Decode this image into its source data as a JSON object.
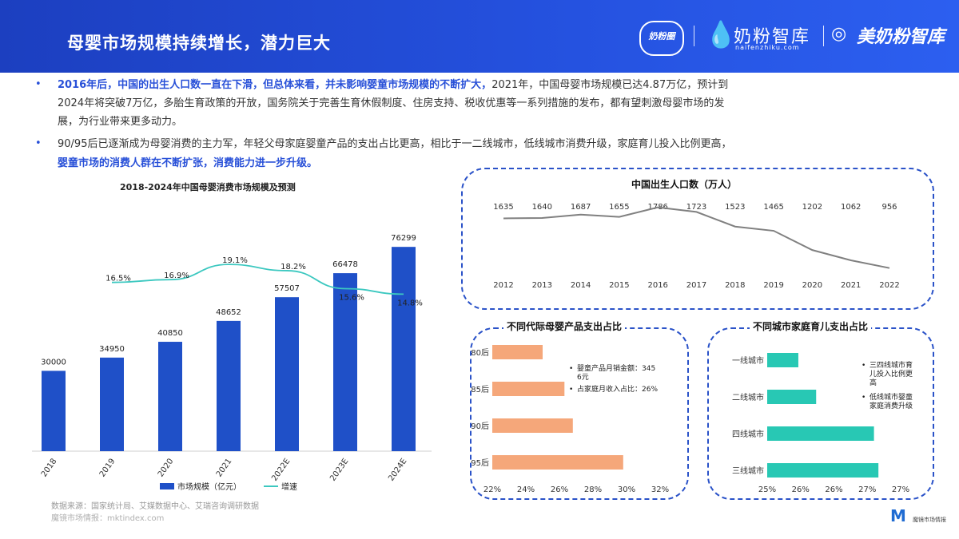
{
  "header": {
    "title": "母婴市场规模持续增长，潜力巨大",
    "logo1": "奶粉圈",
    "logo2_text": "奶粉智库",
    "logo2_sub": "naifenzhiku.com",
    "logo3_text": "美奶粉智库"
  },
  "bullets": {
    "b1_hl": "2016年后，中国的出生人口数一直在下滑，但总体来看，并未影响婴童市场规模的不断扩大，",
    "b1_rest1": "2021年，中国母婴市场规模已达4.87万亿，预计到",
    "b1_line2": "2024年将突破7万亿，多胎生育政策的开放，国务院关于完善生育休假制度、住房支持、税收优惠等一系列措施的发布，都有望刺激母婴市场的发",
    "b1_line3": "展，为行业带来更多动力。",
    "b2_line1": "90/95后已逐渐成为母婴消费的主力军，年轻父母家庭婴童产品的支出占比更高，相比于一二线城市，低线城市消费升级，家庭育儿投入比例更高，",
    "b2_hl": "婴童市场的消费人群在不断扩张，消费能力进一步升级。",
    "dot": "•"
  },
  "source": {
    "line1": "数据来源：国家统计局、艾媒数据中心、艾瑞咨询调研数据",
    "line2": "魔镜市场情报：mktindex.com",
    "corner": "魔镜市场情报"
  },
  "chart_data": [
    {
      "type": "bar",
      "title": "2018-2024年中国母婴消费市场规模及预测",
      "categories": [
        "2018",
        "2019",
        "2020",
        "2021",
        "2022E",
        "2023E",
        "2024E"
      ],
      "series": [
        {
          "name": "市场规模（亿元）",
          "type": "bar",
          "values": [
            30000,
            34950,
            40850,
            48652,
            57507,
            66478,
            76299
          ],
          "color": "#1f50c8"
        },
        {
          "name": "增速",
          "type": "line",
          "values": [
            null,
            16.5,
            16.9,
            19.1,
            18.2,
            15.6,
            14.8
          ],
          "labels": [
            "",
            "16.5%",
            "16.9%",
            "19.1%",
            "18.2%",
            "15.6%",
            "14.8%"
          ],
          "color": "#3cc8c0"
        }
      ],
      "ylim": [
        0,
        85000
      ]
    },
    {
      "type": "line",
      "title": "中国出生人口数（万人）",
      "x": [
        "2012",
        "2013",
        "2014",
        "2015",
        "2016",
        "2017",
        "2018",
        "2019",
        "2020",
        "2021",
        "2022"
      ],
      "values": [
        1635,
        1640,
        1687,
        1655,
        1786,
        1723,
        1523,
        1465,
        1202,
        1062,
        956
      ],
      "color": "#808080"
    },
    {
      "type": "bar",
      "title": "不同代际母婴产品支出占比",
      "orientation": "horizontal",
      "categories": [
        "80后",
        "85后",
        "90后",
        "95后"
      ],
      "values": [
        25.0,
        26.3,
        26.8,
        29.8
      ],
      "color": "#f5a77a",
      "xlim": [
        22,
        32
      ],
      "xticks": [
        "22%",
        "24%",
        "26%",
        "28%",
        "30%",
        "32%"
      ],
      "annotations": [
        "婴童产品月销金额：3456元",
        "占家庭月收入占比：26%"
      ]
    },
    {
      "type": "bar",
      "title": "不同城市家庭育儿支出占比",
      "orientation": "horizontal",
      "categories": [
        "一线城市",
        "二线城市",
        "四线城市",
        "三线城市"
      ],
      "values": [
        25.7,
        26.1,
        27.4,
        27.5
      ],
      "color": "#28c8b4",
      "xlim": [
        25,
        28
      ],
      "xticks": [
        "25%",
        "26%",
        "26%",
        "27%",
        "27%"
      ],
      "annotations": [
        "三四线城市育儿投入比例更高",
        "低线城市婴童家庭消费升级"
      ]
    }
  ]
}
